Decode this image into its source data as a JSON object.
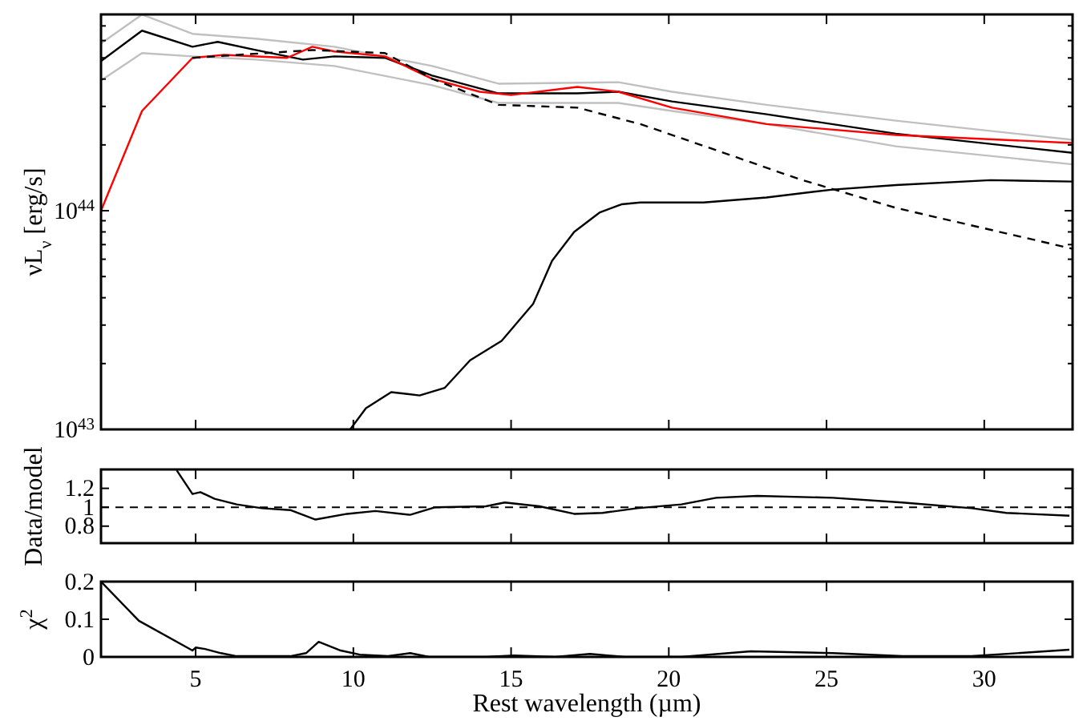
{
  "chart_data": [
    {
      "type": "line",
      "ylabel": "νL$_{ν}$ [erg/s]",
      "log": true,
      "tick_labels": "y",
      "xlim": [
        2,
        32.8
      ],
      "xticks": [
        5,
        10,
        15,
        20,
        25,
        30
      ],
      "ylim": [
        1e+43,
        7.9e+44
      ],
      "yticks": [
        {
          "value": 1e+43,
          "label": "10$^{43}$"
        },
        {
          "value": 2e+43,
          "label": null
        },
        {
          "value": 3e+43,
          "label": null
        },
        {
          "value": 4e+43,
          "label": null
        },
        {
          "value": 5e+43,
          "label": null
        },
        {
          "value": 6e+43,
          "label": null
        },
        {
          "value": 7e+43,
          "label": null
        },
        {
          "value": 8e+43,
          "label": null
        },
        {
          "value": 9e+43,
          "label": null
        },
        {
          "value": 1e+44,
          "label": "10$^{44}$"
        },
        {
          "value": 2e+44,
          "label": null
        },
        {
          "value": 3e+44,
          "label": null
        },
        {
          "value": 4e+44,
          "label": null
        },
        {
          "value": 5e+44,
          "label": null
        },
        {
          "value": 6e+44,
          "label": null
        },
        {
          "value": 7e+44,
          "label": null
        }
      ],
      "series": [
        {
          "color": "#c0c0c0",
          "line_style": "solid",
          "x": [
            2.0,
            3.3,
            4.9,
            6.9,
            9.4,
            12.5,
            14.6,
            18.4,
            20.1,
            23.1,
            27.2,
            32.8
          ],
          "values": [
            5.82e+44,
            7.89e+44,
            6.44e+44,
            6.12e+44,
            5.62e+44,
            4.59e+44,
            3.81e+44,
            3.87e+44,
            3.5e+44,
            3.05e+44,
            2.58e+44,
            2.11e+44
          ]
        },
        {
          "color": "#c0c0c0",
          "line_style": "solid",
          "x": [
            2.0,
            3.3,
            4.9,
            6.9,
            9.4,
            12.5,
            14.6,
            18.4,
            20.1,
            23.1,
            27.2,
            32.8
          ],
          "values": [
            3.94e+44,
            5.26e+44,
            5.08e+44,
            4.91e+44,
            4.59e+44,
            3.75e+44,
            3.11e+44,
            3.11e+44,
            2.86e+44,
            2.49e+44,
            1.97e+44,
            1.63e+44
          ]
        },
        {
          "color": "#000000",
          "line_style": "solid",
          "x": [
            2.0,
            3.3,
            4.9,
            5.7,
            6.9,
            8.4,
            9.4,
            11,
            12.5,
            14.6,
            17.1,
            18.4,
            20.1,
            23.1,
            27.2,
            32.8
          ],
          "values": [
            4.83e+44,
            6.66e+44,
            5.62e+44,
            5.92e+44,
            5.43e+44,
            4.91e+44,
            5.08e+44,
            5e+44,
            4.15e+44,
            3.44e+44,
            3.44e+44,
            3.5e+44,
            3.16e+44,
            2.76e+44,
            2.25e+44,
            1.84e+44
          ]
        },
        {
          "color": "#ff0000",
          "line_style": "solid",
          "x": [
            2.0,
            3.3,
            4.9,
            5.9,
            7.9,
            8.7,
            9.4,
            11,
            12.5,
            14.0,
            15.0,
            17.1,
            18.4,
            20.1,
            23.1,
            27.2,
            32.8
          ],
          "values": [
            1e+44,
            2.86e+44,
            5e+44,
            5.16e+44,
            5e+44,
            5.62e+44,
            5.35e+44,
            5.08e+44,
            4.01e+44,
            3.5e+44,
            3.38e+44,
            3.68e+44,
            3.5e+44,
            2.96e+44,
            2.49e+44,
            2.22e+44,
            2.04e+44
          ]
        },
        {
          "color": "#000000",
          "line_style": "solid",
          "x": [
            9.9,
            10.4,
            11.2,
            12.1,
            12.9,
            13.7,
            14.7,
            15.7,
            16.3,
            17.0,
            17.8,
            18.5,
            19.1,
            21.1,
            23.1,
            25.2,
            27.2,
            30.2,
            32.8
          ],
          "values": [
            1e+43,
            1.25e+43,
            1.48e+43,
            1.43e+43,
            1.55e+43,
            2.07e+43,
            2.54e+43,
            3.75e+43,
            5.9e+43,
            8e+43,
            9.8e+43,
            1.07e+44,
            1.09e+44,
            1.09e+44,
            1.15e+44,
            1.25e+44,
            1.31e+44,
            1.38e+44,
            1.36e+44
          ]
        },
        {
          "color": "#000000",
          "line_style": "dashed",
          "x": [
            4.9,
            8.7,
            11,
            12.5,
            14.6,
            17.1,
            19.1,
            21.6,
            24.1,
            27.2,
            32.8
          ],
          "values": [
            5e+44,
            5.43e+44,
            5.26e+44,
            4.01e+44,
            3.05e+44,
            2.96e+44,
            2.49e+44,
            1.87e+44,
            1.4e+44,
            1.03e+44,
            6.7e+43
          ]
        }
      ]
    },
    {
      "type": "line",
      "ylabel": "Data/model",
      "tick_labels": "y",
      "xlim": [
        2,
        32.8
      ],
      "xticks": [
        5,
        10,
        15,
        20,
        25,
        30
      ],
      "ylim": [
        0.62,
        1.4
      ],
      "yticks": [
        0.8,
        1,
        1.2
      ],
      "ref_lines": [
        {
          "axis": "y",
          "value": 1,
          "color": "#000000",
          "line_style": "dashed"
        }
      ],
      "series": [
        {
          "color": "#000000",
          "line_style": "solid",
          "x": [
            4.4,
            4.9,
            5.15,
            5.6,
            6.3,
            7.1,
            8.0,
            8.8,
            9.8,
            10.7,
            11.8,
            12.6,
            14.2,
            14.8,
            15.9,
            17.0,
            17.9,
            19.0,
            20.4,
            21.5,
            22.8,
            25.2,
            27.4,
            29.6,
            30.7,
            32.7
          ],
          "values": [
            1.39,
            1.14,
            1.16,
            1.09,
            1.03,
            0.99,
            0.97,
            0.87,
            0.93,
            0.96,
            0.92,
            1.0,
            1.01,
            1.05,
            1.01,
            0.93,
            0.94,
            0.99,
            1.03,
            1.1,
            1.12,
            1.1,
            1.05,
            0.99,
            0.94,
            0.91
          ]
        }
      ]
    },
    {
      "type": "line",
      "ylabel": "χ$^{2}$",
      "xlabel": "Rest wavelength (µm)",
      "xlim": [
        2,
        32.8
      ],
      "xticks": [
        5,
        10,
        15,
        20,
        25,
        30
      ],
      "ylim": [
        0,
        0.2
      ],
      "yticks": [
        0,
        0.1,
        0.2
      ],
      "series": [
        {
          "color": "#000000",
          "line_style": "solid",
          "x": [
            2.0,
            3.2,
            4.9,
            5.0,
            5.3,
            5.8,
            6.3,
            8.0,
            8.5,
            8.9,
            9.6,
            10.2,
            11.1,
            11.8,
            12.4,
            14.2,
            15.1,
            16.4,
            17.5,
            18.6,
            20.4,
            22.6,
            25.2,
            27.4,
            29.6,
            32.7
          ],
          "values": [
            0.2,
            0.096,
            0.017,
            0.025,
            0.021,
            0.01,
            0.002,
            0.002,
            0.01,
            0.04,
            0.017,
            0.006,
            0.002,
            0.01,
            0,
            0,
            0.004,
            0,
            0.008,
            0,
            0,
            0.015,
            0.01,
            0.002,
            0.002,
            0.019
          ]
        }
      ]
    }
  ]
}
